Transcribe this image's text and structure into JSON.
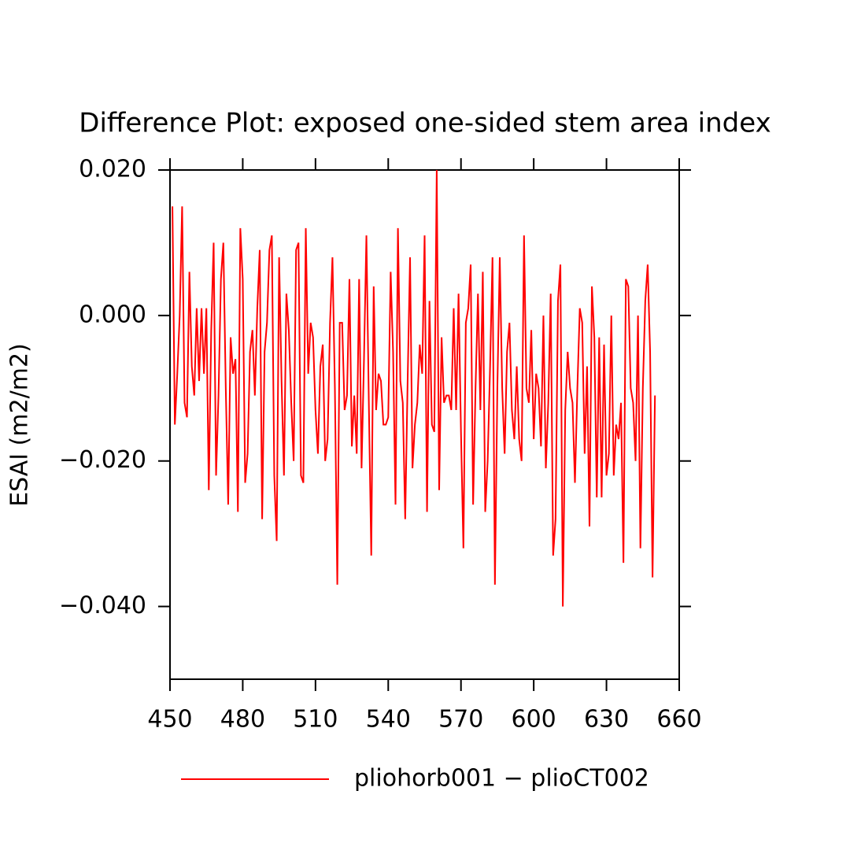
{
  "chart_data": {
    "type": "line",
    "title": "Difference Plot: exposed one-sided stem area index",
    "y_label": "ESAI  (m2/m2)",
    "x": [
      451,
      452,
      453,
      454,
      455,
      456,
      457,
      458,
      459,
      460,
      461,
      462,
      463,
      464,
      465,
      466,
      467,
      468,
      469,
      470,
      471,
      472,
      473,
      474,
      475,
      476,
      477,
      478,
      479,
      480,
      481,
      482,
      483,
      484,
      485,
      486,
      487,
      488,
      489,
      490,
      491,
      492,
      493,
      494,
      495,
      496,
      497,
      498,
      499,
      500,
      501,
      502,
      503,
      504,
      505,
      506,
      507,
      508,
      509,
      510,
      511,
      512,
      513,
      514,
      515,
      516,
      517,
      518,
      519,
      520,
      521,
      522,
      523,
      524,
      525,
      526,
      527,
      528,
      529,
      530,
      531,
      532,
      533,
      534,
      535,
      536,
      537,
      538,
      539,
      540,
      541,
      542,
      543,
      544,
      545,
      546,
      547,
      548,
      549,
      550,
      551,
      552,
      553,
      554,
      555,
      556,
      557,
      558,
      559,
      560,
      561,
      562,
      563,
      564,
      565,
      566,
      567,
      568,
      569,
      570,
      571,
      572,
      573,
      574,
      575,
      576,
      577,
      578,
      579,
      580,
      581,
      582,
      583,
      584,
      585,
      586,
      587,
      588,
      589,
      590,
      591,
      592,
      593,
      594,
      595,
      596,
      597,
      598,
      599,
      600,
      601,
      602,
      603,
      604,
      605,
      606,
      607,
      608,
      609,
      610,
      611,
      612,
      613,
      614,
      615,
      616,
      617,
      618,
      619,
      620,
      621,
      622,
      623,
      624,
      625,
      626,
      627,
      628,
      629,
      630,
      631,
      632,
      633,
      634,
      635,
      636,
      637,
      638,
      639,
      640,
      641,
      642,
      643,
      644,
      645,
      646,
      647,
      648,
      649,
      650
    ],
    "series": [
      {
        "name": "pliohorb001 − plioCT002",
        "color": "#ff0000",
        "values": [
          0.015,
          -0.015,
          -0.008,
          0.0,
          0.015,
          -0.012,
          -0.014,
          0.006,
          -0.007,
          -0.011,
          0.001,
          -0.009,
          0.001,
          -0.008,
          0.001,
          -0.024,
          -0.002,
          0.01,
          -0.022,
          -0.011,
          0.005,
          0.01,
          -0.01,
          -0.026,
          -0.003,
          -0.008,
          -0.006,
          -0.027,
          0.012,
          0.005,
          -0.023,
          -0.019,
          -0.005,
          -0.002,
          -0.011,
          0.001,
          0.009,
          -0.028,
          -0.005,
          -0.001,
          0.009,
          0.011,
          -0.022,
          -0.031,
          0.008,
          -0.009,
          -0.022,
          0.003,
          -0.002,
          -0.012,
          -0.02,
          0.009,
          0.01,
          -0.022,
          -0.023,
          0.012,
          -0.008,
          -0.001,
          -0.003,
          -0.013,
          -0.019,
          -0.007,
          -0.004,
          -0.02,
          -0.017,
          -0.001,
          0.008,
          -0.01,
          -0.037,
          -0.001,
          -0.001,
          -0.013,
          -0.011,
          0.005,
          -0.018,
          -0.011,
          -0.019,
          0.005,
          -0.021,
          -0.006,
          0.011,
          -0.012,
          -0.033,
          0.004,
          -0.013,
          -0.008,
          -0.009,
          -0.015,
          -0.015,
          -0.014,
          0.006,
          -0.005,
          -0.026,
          0.012,
          -0.009,
          -0.012,
          -0.028,
          -0.009,
          0.008,
          -0.021,
          -0.015,
          -0.012,
          -0.004,
          -0.008,
          0.011,
          -0.027,
          0.002,
          -0.015,
          -0.016,
          0.02,
          -0.024,
          -0.003,
          -0.012,
          -0.011,
          -0.011,
          -0.013,
          0.001,
          -0.013,
          0.003,
          -0.016,
          -0.032,
          -0.001,
          0.001,
          0.007,
          -0.026,
          -0.01,
          0.003,
          -0.013,
          0.006,
          -0.027,
          -0.02,
          -0.007,
          0.008,
          -0.037,
          -0.01,
          0.008,
          -0.01,
          -0.019,
          -0.005,
          -0.001,
          -0.013,
          -0.017,
          -0.007,
          -0.017,
          -0.02,
          0.011,
          -0.01,
          -0.012,
          -0.002,
          -0.017,
          -0.008,
          -0.01,
          -0.018,
          0.0,
          -0.021,
          -0.012,
          0.003,
          -0.033,
          -0.028,
          0.002,
          0.007,
          -0.04,
          -0.013,
          -0.005,
          -0.01,
          -0.012,
          -0.023,
          -0.01,
          0.001,
          -0.001,
          -0.019,
          -0.007,
          -0.029,
          0.004,
          -0.003,
          -0.025,
          -0.003,
          -0.025,
          -0.004,
          -0.022,
          -0.019,
          0.0,
          -0.022,
          -0.015,
          -0.017,
          -0.012,
          -0.034,
          0.005,
          0.004,
          -0.01,
          -0.012,
          -0.02,
          0.0,
          -0.032,
          -0.01,
          0.002,
          0.007,
          -0.005,
          -0.036,
          -0.011
        ]
      }
    ],
    "xlim": [
      450,
      660
    ],
    "xticks": [
      450,
      480,
      510,
      540,
      570,
      600,
      630,
      660
    ],
    "ylim": [
      -0.05,
      0.02
    ],
    "yticks": [
      {
        "value": 0.02,
        "label": "0.020"
      },
      {
        "value": 0,
        "label": "0.000"
      },
      {
        "value": -0.02,
        "label": "−0.020"
      },
      {
        "value": -0.04,
        "label": "−0.040"
      }
    ],
    "grid": false
  }
}
